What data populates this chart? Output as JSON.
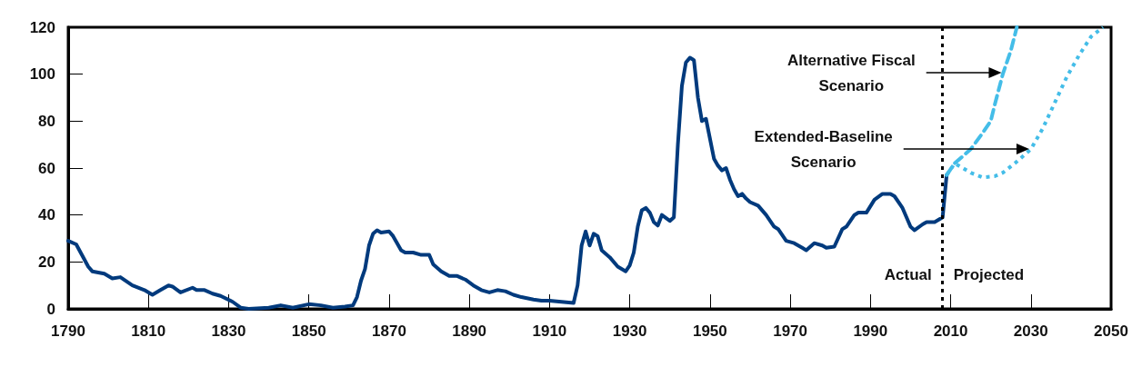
{
  "chart_data": {
    "type": "line",
    "xlim": [
      1790,
      2050
    ],
    "xticks": [
      1790,
      1810,
      1830,
      1850,
      1870,
      1890,
      1910,
      1930,
      1950,
      1970,
      1990,
      2010,
      2030,
      2050
    ],
    "ylim": [
      0,
      120
    ],
    "yticks": [
      0,
      20,
      40,
      60,
      80,
      100,
      120
    ],
    "grid": false,
    "legend": false,
    "marker": "none",
    "series": [
      {
        "color": "#003a7d",
        "line_style": "solid",
        "x": [
          1790,
          1792,
          1795,
          1796,
          1799,
          1801,
          1803,
          1806,
          1809,
          1811,
          1813,
          1815,
          1816,
          1818,
          1821,
          1822,
          1824,
          1826,
          1828,
          1831,
          1833,
          1835,
          1838,
          1840,
          1843,
          1846,
          1850,
          1853,
          1856,
          1859,
          1861,
          1862,
          1863,
          1864,
          1865,
          1866,
          1867,
          1868,
          1870,
          1871,
          1873,
          1874,
          1876,
          1878,
          1880,
          1881,
          1883,
          1885,
          1887,
          1889,
          1891,
          1893,
          1895,
          1897,
          1899,
          1901,
          1903,
          1906,
          1908,
          1910,
          1913,
          1916,
          1917,
          1918,
          1919,
          1920,
          1921,
          1922,
          1923,
          1925,
          1927,
          1929,
          1930,
          1931,
          1932,
          1933,
          1934,
          1935,
          1936,
          1937,
          1938,
          1940,
          1941,
          1942,
          1943,
          1944,
          1945,
          1946,
          1947,
          1948,
          1949,
          1951,
          1952,
          1953,
          1954,
          1955,
          1956,
          1957,
          1958,
          1959,
          1960,
          1962,
          1964,
          1966,
          1967,
          1969,
          1971,
          1973,
          1974,
          1976,
          1978,
          1979,
          1981,
          1983,
          1984,
          1986,
          1987,
          1989,
          1991,
          1993,
          1995,
          1996,
          1998,
          2000,
          2001,
          2003,
          2004,
          2006,
          2008,
          2009
        ],
        "values": [
          29,
          27.5,
          18,
          16,
          15,
          13,
          13.5,
          10,
          8,
          6,
          8,
          10,
          9.5,
          7,
          9,
          8,
          8,
          6.5,
          5.5,
          3,
          0.5,
          0,
          0.3,
          0.5,
          1.5,
          0.5,
          2,
          1.5,
          0.5,
          1,
          1.5,
          5,
          12,
          17,
          27,
          32,
          33.5,
          32.5,
          33,
          31,
          25,
          24,
          24,
          23,
          23,
          19,
          16,
          14,
          14,
          12.5,
          10,
          8,
          7,
          8,
          7.5,
          6,
          5,
          4,
          3.5,
          3.5,
          3,
          2.5,
          10,
          27,
          33,
          27,
          32,
          31,
          25,
          22,
          18,
          16,
          18.5,
          24,
          35,
          42,
          43,
          41,
          37,
          35.5,
          40,
          37.5,
          39,
          70,
          95,
          105,
          107,
          106,
          90,
          80,
          81,
          64,
          61,
          59,
          60,
          55,
          51,
          48,
          49,
          47,
          45.5,
          44,
          40,
          35,
          34,
          29,
          28,
          26,
          25,
          28,
          27,
          26,
          26.5,
          34,
          35,
          40,
          41,
          41,
          46.5,
          49,
          49,
          48,
          43,
          35,
          33.5,
          36,
          37,
          37,
          39,
          57
        ]
      },
      {
        "name": "Alternative Fiscal Scenario",
        "color": "#44bde8",
        "line_style": "dashed",
        "x": [
          2009,
          2011,
          2015,
          2018,
          2020,
          2021,
          2023,
          2025,
          2026.5
        ],
        "values": [
          57,
          62,
          68,
          75,
          80,
          87,
          100,
          110,
          120
        ]
      },
      {
        "name": "Extended-Baseline Scenario",
        "color": "#44bde8",
        "line_style": "dotted",
        "x": [
          2009,
          2011,
          2013,
          2015,
          2018,
          2021,
          2023,
          2026,
          2030,
          2033,
          2036,
          2039,
          2042,
          2045,
          2048
        ],
        "values": [
          57,
          62,
          60,
          58,
          56,
          56.5,
          58,
          62,
          68,
          77,
          88,
          99,
          108,
          116,
          120
        ]
      }
    ],
    "ref_lines": [
      {
        "axis": "x",
        "value": 2008,
        "color": "#000000",
        "line_style": "dotted"
      }
    ],
    "annotations": [
      "Actual",
      "Projected"
    ]
  }
}
